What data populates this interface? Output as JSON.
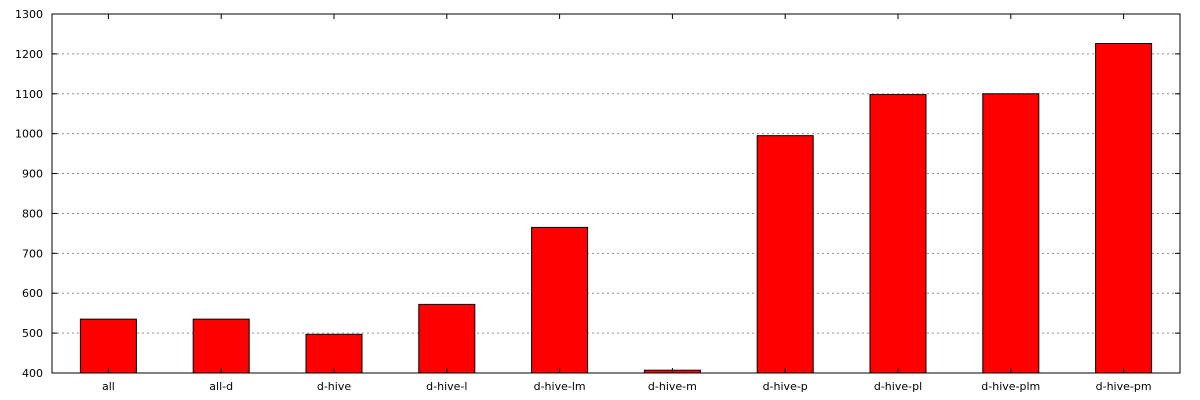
{
  "chart_data": {
    "type": "bar",
    "title": "",
    "xlabel": "",
    "ylabel": "",
    "categories": [
      "all",
      "all-d",
      "d-hive",
      "d-hive-l",
      "d-hive-lm",
      "d-hive-m",
      "d-hive-p",
      "d-hive-pl",
      "d-hive-plm",
      "d-hive-pm"
    ],
    "values": [
      535,
      535,
      497,
      572,
      765,
      407,
      995,
      1098,
      1100,
      1226
    ],
    "ylim": [
      400,
      1300
    ],
    "yticks": [
      400,
      500,
      600,
      700,
      800,
      900,
      1000,
      1100,
      1200,
      1300
    ],
    "grid": true,
    "grid_style": "dotted horizontal",
    "legend": "none",
    "bar_color": "#ff0000",
    "bar_edge_color": "#000000"
  }
}
